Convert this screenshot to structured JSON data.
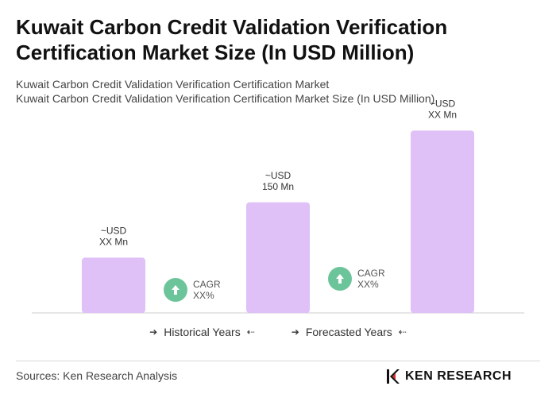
{
  "header": {
    "title": "Kuwait Carbon Credit Validation Verification Certification Market Size (In USD Million)",
    "subtitle_1": "Kuwait Carbon Credit Validation Verification Certification Market",
    "subtitle_2": "Kuwait Carbon Credit Validation Verification Certification Market Size (In USD Million)"
  },
  "chart_data": {
    "type": "bar",
    "categories": [
      "",
      "",
      ""
    ],
    "values": [
      30,
      60,
      99
    ],
    "bar_labels": [
      [
        "~USD",
        "XX Mn"
      ],
      [
        "~USD",
        "150 Mn"
      ],
      [
        "~USD",
        "XX Mn"
      ]
    ],
    "cagr_badges": [
      {
        "line1": "CAGR",
        "line2": "XX%"
      },
      {
        "line1": "CAGR",
        "line2": "XX%"
      }
    ],
    "ylim": [
      0,
      100
    ],
    "grid": false,
    "bar_color": "#dfc0f7",
    "badge_color": "#6cc59a",
    "legend": {
      "historical": "Historical Years",
      "forecasted": "Forecasted Years"
    }
  },
  "footer": {
    "sources": "Sources: Ken Research Analysis",
    "logo_text": "KEN RESEARCH"
  }
}
